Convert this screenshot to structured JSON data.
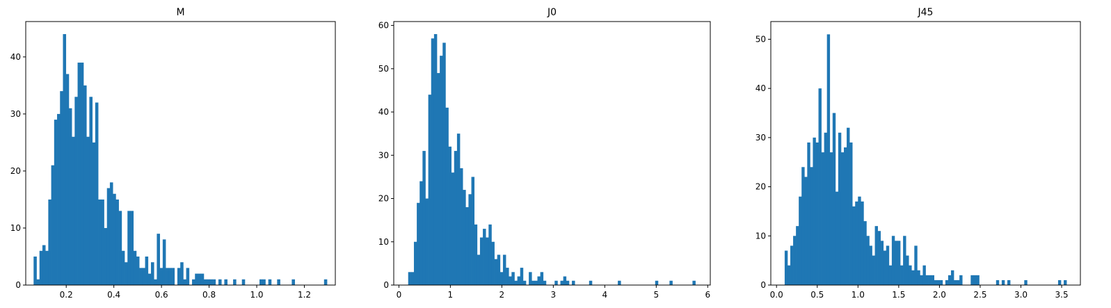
{
  "chart_data": [
    {
      "type": "bar",
      "title": "M",
      "xlabel": "",
      "ylabel": "",
      "xlim": [
        0.03,
        1.33
      ],
      "ylim": [
        0,
        46.2
      ],
      "xticks": [
        0.2,
        0.4,
        0.6,
        0.8,
        1.0,
        1.2
      ],
      "xtick_labels": [
        "0.2",
        "0.4",
        "0.6",
        "0.8",
        "1.0",
        "1.2"
      ],
      "yticks": [
        0,
        10,
        20,
        30,
        40
      ],
      "ytick_labels": [
        "0",
        "10",
        "20",
        "30",
        "40"
      ],
      "bin_start": 0.063,
      "bin_width": 0.01232,
      "counts": [
        5,
        1,
        6,
        7,
        6,
        15,
        21,
        29,
        30,
        34,
        44,
        37,
        31,
        26,
        33,
        39,
        39,
        35,
        26,
        33,
        25,
        32,
        15,
        15,
        10,
        17,
        18,
        16,
        15,
        13,
        6,
        4,
        13,
        13,
        6,
        5,
        3,
        3,
        5,
        2,
        4,
        1,
        9,
        3,
        8,
        3,
        3,
        3,
        0,
        3,
        4,
        1,
        3,
        0,
        1,
        2,
        2,
        2,
        1,
        1,
        1,
        1,
        0,
        1,
        0,
        1,
        0,
        0,
        1,
        0,
        0,
        1,
        0,
        0,
        0,
        0,
        0,
        1,
        1,
        0,
        1,
        0,
        0,
        1,
        0,
        0,
        0,
        0,
        1,
        0,
        0,
        0,
        0,
        0,
        0,
        0,
        0,
        0,
        0,
        1
      ]
    },
    {
      "type": "bar",
      "title": "J0",
      "xlabel": "",
      "ylabel": "",
      "xlim": [
        -0.1,
        6.05
      ],
      "ylim": [
        0,
        60.9
      ],
      "xticks": [
        0,
        1,
        2,
        3,
        4,
        5,
        6
      ],
      "xtick_labels": [
        "0",
        "1",
        "2",
        "3",
        "4",
        "5",
        "6"
      ],
      "yticks": [
        0,
        10,
        20,
        30,
        40,
        50,
        60
      ],
      "ytick_labels": [
        "0",
        "10",
        "20",
        "30",
        "40",
        "50",
        "60"
      ],
      "bin_start": 0.18,
      "bin_width": 0.0558,
      "counts": [
        3,
        3,
        10,
        19,
        24,
        31,
        20,
        44,
        57,
        58,
        49,
        53,
        56,
        41,
        32,
        26,
        31,
        35,
        27,
        22,
        18,
        21,
        25,
        14,
        7,
        11,
        13,
        11,
        14,
        10,
        6,
        7,
        3,
        7,
        4,
        2,
        3,
        1,
        2,
        4,
        1,
        0,
        3,
        1,
        1,
        2,
        3,
        1,
        0,
        0,
        0,
        1,
        0,
        1,
        2,
        1,
        0,
        1,
        0,
        0,
        0,
        0,
        0,
        1,
        0,
        0,
        0,
        0,
        0,
        0,
        0,
        0,
        0,
        1,
        0,
        0,
        0,
        0,
        0,
        0,
        0,
        0,
        0,
        0,
        0,
        0,
        1,
        0,
        0,
        0,
        0,
        1,
        0,
        0,
        0,
        0,
        0,
        0,
        0,
        1
      ]
    },
    {
      "type": "bar",
      "title": "J45",
      "xlabel": "",
      "ylabel": "",
      "xlim": [
        -0.07,
        3.73
      ],
      "ylim": [
        0,
        53.6
      ],
      "xticks": [
        0.0,
        0.5,
        1.0,
        1.5,
        2.0,
        2.5,
        3.0,
        3.5
      ],
      "xtick_labels": [
        "0.0",
        "0.5",
        "1.0",
        "1.5",
        "2.0",
        "2.5",
        "3.0",
        "3.5"
      ],
      "yticks": [
        0,
        10,
        20,
        30,
        40,
        50
      ],
      "ytick_labels": [
        "0",
        "10",
        "20",
        "30",
        "40",
        "50"
      ],
      "bin_start": 0.1,
      "bin_width": 0.0346,
      "counts": [
        7,
        4,
        8,
        10,
        12,
        18,
        24,
        22,
        29,
        24,
        30,
        29,
        40,
        27,
        31,
        51,
        27,
        35,
        19,
        31,
        27,
        28,
        32,
        29,
        16,
        17,
        18,
        17,
        13,
        10,
        8,
        6,
        12,
        11,
        9,
        7,
        8,
        4,
        10,
        9,
        9,
        4,
        10,
        6,
        4,
        3,
        8,
        3,
        2,
        4,
        2,
        2,
        2,
        1,
        1,
        1,
        0,
        1,
        2,
        3,
        1,
        1,
        2,
        0,
        0,
        0,
        2,
        2,
        2,
        0,
        0,
        0,
        0,
        0,
        0,
        1,
        0,
        1,
        0,
        1,
        0,
        0,
        0,
        0,
        0,
        1,
        0,
        0,
        0,
        0,
        0,
        0,
        0,
        0,
        0,
        0,
        0,
        1,
        0,
        1
      ]
    }
  ],
  "colors": {
    "bar": "#1f77b4",
    "axes": "#000000",
    "background": "#ffffff"
  }
}
